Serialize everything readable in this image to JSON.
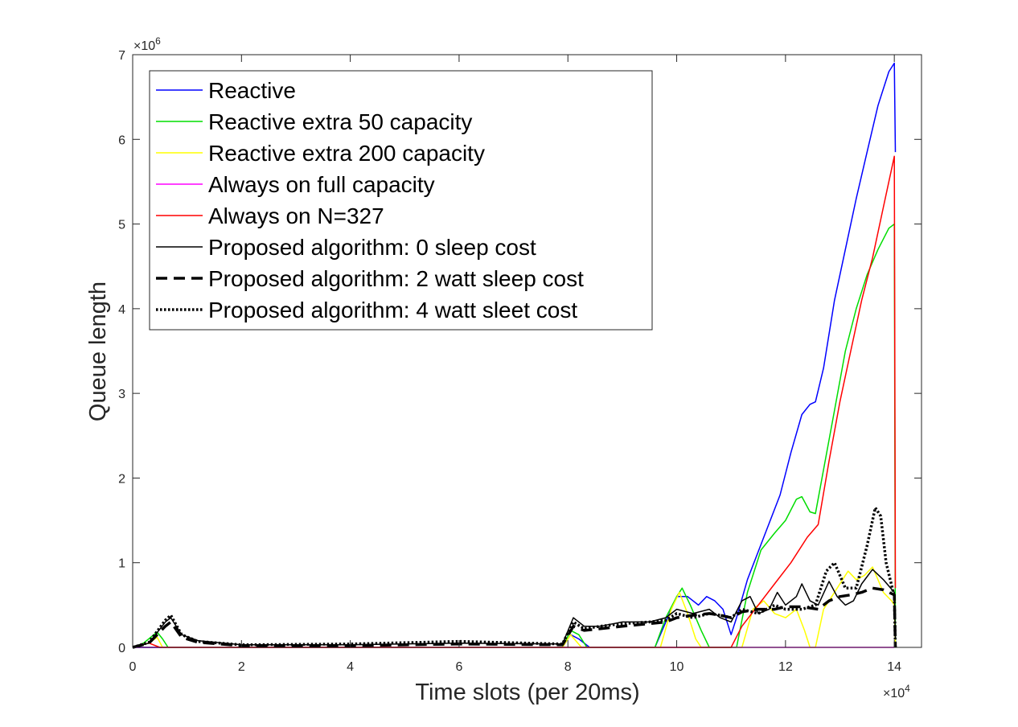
{
  "chart_data": {
    "type": "line",
    "xlabel": "Time slots (per 20ms)",
    "ylabel": "Queue length",
    "x_exponent_base": "×10",
    "x_exponent_power": "4",
    "y_exponent_base": "×10",
    "y_exponent_power": "6",
    "xlim": [
      0,
      14.5
    ],
    "ylim": [
      0,
      7
    ],
    "xticks": [
      0,
      2,
      4,
      6,
      8,
      10,
      12,
      14
    ],
    "xtick_labels": [
      "0",
      "2",
      "4",
      "6",
      "8",
      "10",
      "12",
      "14"
    ],
    "yticks": [
      0,
      1,
      2,
      3,
      4,
      5,
      6,
      7
    ],
    "ytick_labels": [
      "0",
      "1",
      "2",
      "3",
      "4",
      "5",
      "6",
      "7"
    ],
    "legend_location": "top-left",
    "series": [
      {
        "name": "Reactive",
        "color": "#0000ff",
        "style": "solid",
        "points": [
          [
            0,
            0
          ],
          [
            0.6,
            0
          ],
          [
            1,
            0
          ],
          [
            7.9,
            0
          ],
          [
            8.05,
            0.15
          ],
          [
            8.2,
            0.1
          ],
          [
            8.4,
            0
          ],
          [
            9.6,
            0
          ],
          [
            9.8,
            0.3
          ],
          [
            10,
            0.6
          ],
          [
            10.2,
            0.6
          ],
          [
            10.4,
            0.5
          ],
          [
            10.55,
            0.6
          ],
          [
            10.7,
            0.55
          ],
          [
            10.85,
            0.45
          ],
          [
            11.0,
            0.15
          ],
          [
            11.1,
            0.35
          ],
          [
            11.3,
            0.8
          ],
          [
            11.6,
            1.3
          ],
          [
            11.9,
            1.8
          ],
          [
            12.1,
            2.3
          ],
          [
            12.3,
            2.75
          ],
          [
            12.45,
            2.87
          ],
          [
            12.55,
            2.9
          ],
          [
            12.7,
            3.3
          ],
          [
            12.9,
            4.1
          ],
          [
            13.1,
            4.7
          ],
          [
            13.3,
            5.3
          ],
          [
            13.5,
            5.85
          ],
          [
            13.7,
            6.4
          ],
          [
            13.9,
            6.8
          ],
          [
            14,
            6.9
          ],
          [
            14.02,
            5.85
          ]
        ]
      },
      {
        "name": "Reactive extra 50 capacity",
        "color": "#00dd00",
        "style": "solid",
        "points": [
          [
            0,
            0
          ],
          [
            0.2,
            0.05
          ],
          [
            0.45,
            0.18
          ],
          [
            0.55,
            0.1
          ],
          [
            0.65,
            0
          ],
          [
            7.9,
            0
          ],
          [
            8.05,
            0.2
          ],
          [
            8.2,
            0.15
          ],
          [
            8.35,
            0
          ],
          [
            9.6,
            0
          ],
          [
            9.8,
            0.35
          ],
          [
            10,
            0.6
          ],
          [
            10.1,
            0.7
          ],
          [
            10.25,
            0.5
          ],
          [
            10.45,
            0.2
          ],
          [
            10.6,
            0
          ],
          [
            11.1,
            0
          ],
          [
            11.3,
            0.65
          ],
          [
            11.55,
            1.15
          ],
          [
            11.8,
            1.35
          ],
          [
            12.0,
            1.5
          ],
          [
            12.2,
            1.75
          ],
          [
            12.3,
            1.78
          ],
          [
            12.45,
            1.6
          ],
          [
            12.55,
            1.58
          ],
          [
            12.7,
            2.1
          ],
          [
            12.9,
            2.8
          ],
          [
            13.1,
            3.5
          ],
          [
            13.3,
            4.0
          ],
          [
            13.5,
            4.4
          ],
          [
            13.7,
            4.7
          ],
          [
            13.9,
            4.95
          ],
          [
            14,
            5.0
          ],
          [
            14.02,
            0
          ]
        ]
      },
      {
        "name": "Reactive extra 200 capacity",
        "color": "#ffff00",
        "style": "solid",
        "points": [
          [
            0,
            0
          ],
          [
            0.3,
            0.05
          ],
          [
            0.45,
            0.12
          ],
          [
            0.55,
            0
          ],
          [
            7.9,
            0
          ],
          [
            8.05,
            0.15
          ],
          [
            8.25,
            0
          ],
          [
            9.7,
            0
          ],
          [
            9.9,
            0.45
          ],
          [
            10.05,
            0.65
          ],
          [
            10.2,
            0.4
          ],
          [
            10.35,
            0.1
          ],
          [
            10.45,
            0
          ],
          [
            11.2,
            0
          ],
          [
            11.4,
            0.45
          ],
          [
            11.6,
            0.55
          ],
          [
            11.8,
            0.4
          ],
          [
            12.0,
            0.35
          ],
          [
            12.2,
            0.45
          ],
          [
            12.35,
            0.2
          ],
          [
            12.45,
            0
          ],
          [
            12.55,
            0
          ],
          [
            12.7,
            0.45
          ],
          [
            12.85,
            0.6
          ],
          [
            13.0,
            0.75
          ],
          [
            13.15,
            0.9
          ],
          [
            13.3,
            0.8
          ],
          [
            13.45,
            0.85
          ],
          [
            13.6,
            0.95
          ],
          [
            13.8,
            0.65
          ],
          [
            13.95,
            0.55
          ],
          [
            14,
            0.5
          ],
          [
            14.02,
            0
          ]
        ]
      },
      {
        "name": "Always on full capacity",
        "color": "#ff00ff",
        "style": "solid",
        "points": [
          [
            0,
            0
          ],
          [
            14,
            0
          ]
        ]
      },
      {
        "name": "Always on N=327",
        "color": "#ff0000",
        "style": "solid",
        "points": [
          [
            0,
            0
          ],
          [
            0.3,
            0.05
          ],
          [
            0.5,
            0
          ],
          [
            11.0,
            0
          ],
          [
            11.2,
            0.25
          ],
          [
            11.5,
            0.5
          ],
          [
            11.8,
            0.75
          ],
          [
            12.1,
            1.0
          ],
          [
            12.4,
            1.3
          ],
          [
            12.6,
            1.45
          ],
          [
            12.8,
            2.2
          ],
          [
            13.0,
            2.9
          ],
          [
            13.2,
            3.5
          ],
          [
            13.4,
            4.1
          ],
          [
            13.6,
            4.6
          ],
          [
            13.8,
            5.2
          ],
          [
            14,
            5.8
          ],
          [
            14.02,
            0.7
          ]
        ]
      },
      {
        "name": "Proposed algorithm: 0 sleep cost",
        "color": "#000000",
        "style": "solid",
        "points": [
          [
            0,
            0
          ],
          [
            0.3,
            0.05
          ],
          [
            0.6,
            0.3
          ],
          [
            0.7,
            0.35
          ],
          [
            0.9,
            0.15
          ],
          [
            1.2,
            0.08
          ],
          [
            2,
            0.03
          ],
          [
            4,
            0.03
          ],
          [
            6,
            0.05
          ],
          [
            7.9,
            0.04
          ],
          [
            8.1,
            0.35
          ],
          [
            8.3,
            0.25
          ],
          [
            8.6,
            0.25
          ],
          [
            9.0,
            0.3
          ],
          [
            9.5,
            0.3
          ],
          [
            9.8,
            0.35
          ],
          [
            10.0,
            0.45
          ],
          [
            10.3,
            0.4
          ],
          [
            10.6,
            0.45
          ],
          [
            10.8,
            0.35
          ],
          [
            11.0,
            0.3
          ],
          [
            11.2,
            0.55
          ],
          [
            11.35,
            0.6
          ],
          [
            11.5,
            0.4
          ],
          [
            11.7,
            0.45
          ],
          [
            11.85,
            0.65
          ],
          [
            12.0,
            0.5
          ],
          [
            12.2,
            0.6
          ],
          [
            12.3,
            0.75
          ],
          [
            12.45,
            0.55
          ],
          [
            12.6,
            0.5
          ],
          [
            12.8,
            0.78
          ],
          [
            12.95,
            0.6
          ],
          [
            13.1,
            0.5
          ],
          [
            13.25,
            0.55
          ],
          [
            13.4,
            0.75
          ],
          [
            13.6,
            0.92
          ],
          [
            13.8,
            0.8
          ],
          [
            14,
            0.65
          ],
          [
            14.02,
            0.1
          ]
        ]
      },
      {
        "name": "Proposed algorithm: 2 watt sleep cost",
        "color": "#000000",
        "style": "dashed",
        "points": [
          [
            0,
            0
          ],
          [
            0.3,
            0.05
          ],
          [
            0.6,
            0.25
          ],
          [
            0.7,
            0.3
          ],
          [
            0.9,
            0.12
          ],
          [
            1.2,
            0.06
          ],
          [
            2,
            0.02
          ],
          [
            4,
            0.02
          ],
          [
            6,
            0.04
          ],
          [
            7.9,
            0.03
          ],
          [
            8.1,
            0.25
          ],
          [
            8.3,
            0.2
          ],
          [
            8.6,
            0.22
          ],
          [
            9.0,
            0.25
          ],
          [
            9.5,
            0.28
          ],
          [
            9.8,
            0.3
          ],
          [
            10.0,
            0.35
          ],
          [
            10.3,
            0.38
          ],
          [
            10.6,
            0.4
          ],
          [
            10.8,
            0.38
          ],
          [
            11.0,
            0.35
          ],
          [
            11.2,
            0.42
          ],
          [
            11.5,
            0.45
          ],
          [
            11.8,
            0.45
          ],
          [
            12.0,
            0.48
          ],
          [
            12.3,
            0.48
          ],
          [
            12.6,
            0.45
          ],
          [
            12.8,
            0.55
          ],
          [
            13.0,
            0.6
          ],
          [
            13.2,
            0.62
          ],
          [
            13.4,
            0.65
          ],
          [
            13.6,
            0.7
          ],
          [
            13.8,
            0.68
          ],
          [
            14,
            0.62
          ],
          [
            14.02,
            0
          ]
        ]
      },
      {
        "name": "Proposed algorithm: 4 watt sleet cost",
        "color": "#000000",
        "style": "dotted",
        "points": [
          [
            0,
            0
          ],
          [
            0.3,
            0.06
          ],
          [
            0.6,
            0.32
          ],
          [
            0.7,
            0.38
          ],
          [
            0.9,
            0.15
          ],
          [
            1.2,
            0.07
          ],
          [
            2,
            0.03
          ],
          [
            4,
            0.04
          ],
          [
            6,
            0.07
          ],
          [
            7.9,
            0.04
          ],
          [
            8.1,
            0.3
          ],
          [
            8.3,
            0.22
          ],
          [
            8.6,
            0.25
          ],
          [
            9.0,
            0.28
          ],
          [
            9.5,
            0.3
          ],
          [
            9.8,
            0.32
          ],
          [
            10.0,
            0.4
          ],
          [
            10.3,
            0.35
          ],
          [
            10.6,
            0.4
          ],
          [
            10.8,
            0.38
          ],
          [
            11.0,
            0.35
          ],
          [
            11.2,
            0.45
          ],
          [
            11.5,
            0.4
          ],
          [
            11.8,
            0.5
          ],
          [
            12.0,
            0.45
          ],
          [
            12.3,
            0.45
          ],
          [
            12.55,
            0.5
          ],
          [
            12.75,
            0.9
          ],
          [
            12.9,
            1.0
          ],
          [
            13.1,
            0.7
          ],
          [
            13.3,
            0.7
          ],
          [
            13.5,
            1.2
          ],
          [
            13.65,
            1.65
          ],
          [
            13.75,
            1.55
          ],
          [
            13.85,
            1.0
          ],
          [
            14,
            0.6
          ],
          [
            14.02,
            0
          ]
        ]
      }
    ]
  }
}
